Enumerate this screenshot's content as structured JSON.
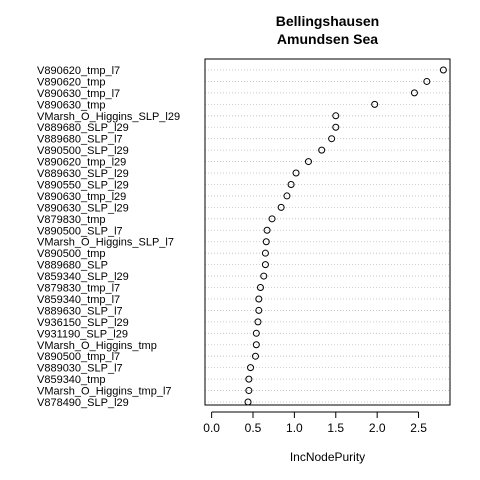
{
  "title_line1": "Bellingshausen",
  "title_line2": "Amundsen Sea",
  "xlabel": "IncNodePurity",
  "chart_data": {
    "type": "scatter",
    "title": "Bellingshausen Amundsen Sea",
    "xlabel": "IncNodePurity",
    "ylabel": "",
    "xlim": [
      -0.08,
      2.88
    ],
    "xticks": [
      "0.0",
      "0.5",
      "1.0",
      "1.5",
      "2.0",
      "2.5"
    ],
    "xtick_values": [
      0,
      0.5,
      1,
      1.5,
      2,
      2.5
    ],
    "grid": "horizontal dotted",
    "marker": "open circle",
    "categories": [
      "V890620_tmp_l7",
      "V890620_tmp",
      "V890630_tmp_l7",
      "V890630_tmp",
      "VMarsh_O_Higgins_SLP_l29",
      "V889680_SLP_l29",
      "V889680_SLP_l7",
      "V890500_SLP_l29",
      "V890620_tmp_l29",
      "V889630_SLP_l29",
      "V890550_SLP_l29",
      "V890630_tmp_l29",
      "V890630_SLP_l29",
      "V879830_tmp",
      "V890500_SLP_l7",
      "VMarsh_O_Higgins_SLP_l7",
      "V890500_tmp",
      "V889680_SLP",
      "V859340_SLP_l29",
      "V879830_tmp_l7",
      "V859340_tmp_l7",
      "V889630_SLP_l7",
      "V936150_SLP_l29",
      "V931190_SLP_l29",
      "VMarsh_O_Higgins_tmp",
      "V890500_tmp_l7",
      "V889030_SLP_l7",
      "V859340_tmp",
      "VMarsh_O_Higgins_tmp_l7",
      "V878490_SLP_l29"
    ],
    "values": [
      2.8,
      2.6,
      2.45,
      1.97,
      1.5,
      1.5,
      1.45,
      1.33,
      1.17,
      1.02,
      0.96,
      0.91,
      0.84,
      0.73,
      0.67,
      0.66,
      0.65,
      0.65,
      0.63,
      0.59,
      0.57,
      0.57,
      0.56,
      0.54,
      0.54,
      0.53,
      0.47,
      0.45,
      0.45,
      0.44
    ]
  }
}
